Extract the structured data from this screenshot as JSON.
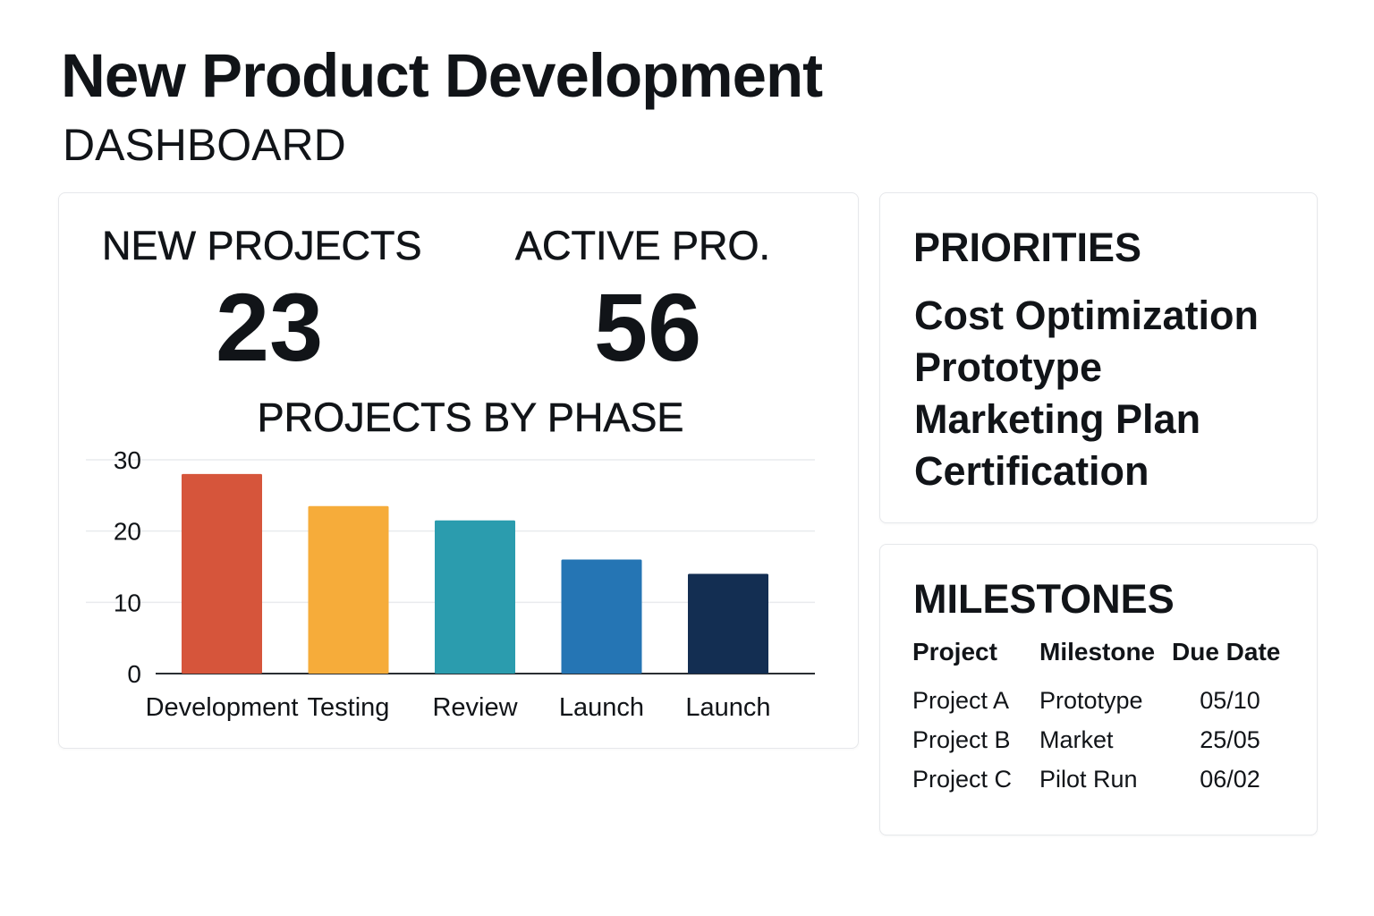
{
  "header": {
    "title": "New Product Development",
    "subtitle": "DASHBOARD"
  },
  "kpis": {
    "new_projects": {
      "label": "NEW PROJECTS",
      "value": "23"
    },
    "active_projects": {
      "label": "ACTIVE PRO.",
      "value": "56"
    }
  },
  "chart_data": {
    "type": "bar",
    "title": "PROJECTS BY PHASE",
    "categories": [
      "Development",
      "Testing",
      "Review",
      "Launch",
      "Launch"
    ],
    "values": [
      28,
      23.5,
      21.5,
      16,
      14
    ],
    "colors": [
      "#d6553b",
      "#f6ac3a",
      "#2b9cae",
      "#2575b4",
      "#132e52"
    ],
    "ylim": [
      0,
      30
    ],
    "yticks": [
      0,
      10,
      20,
      30
    ],
    "xlabel": "",
    "ylabel": "",
    "grid": true
  },
  "priorities": {
    "heading": "PRIORITIES",
    "items": [
      "Cost Optimization",
      "Prototype",
      "Marketing Plan",
      "Certification"
    ]
  },
  "milestones": {
    "heading": "MILESTONES",
    "columns": [
      "Project",
      "Milestone",
      "Due Date"
    ],
    "rows": [
      [
        "Project A",
        "Prototype",
        "05/10"
      ],
      [
        "Project B",
        "Market",
        "25/05"
      ],
      [
        "Project C",
        "Pilot Run",
        "06/02"
      ]
    ]
  }
}
